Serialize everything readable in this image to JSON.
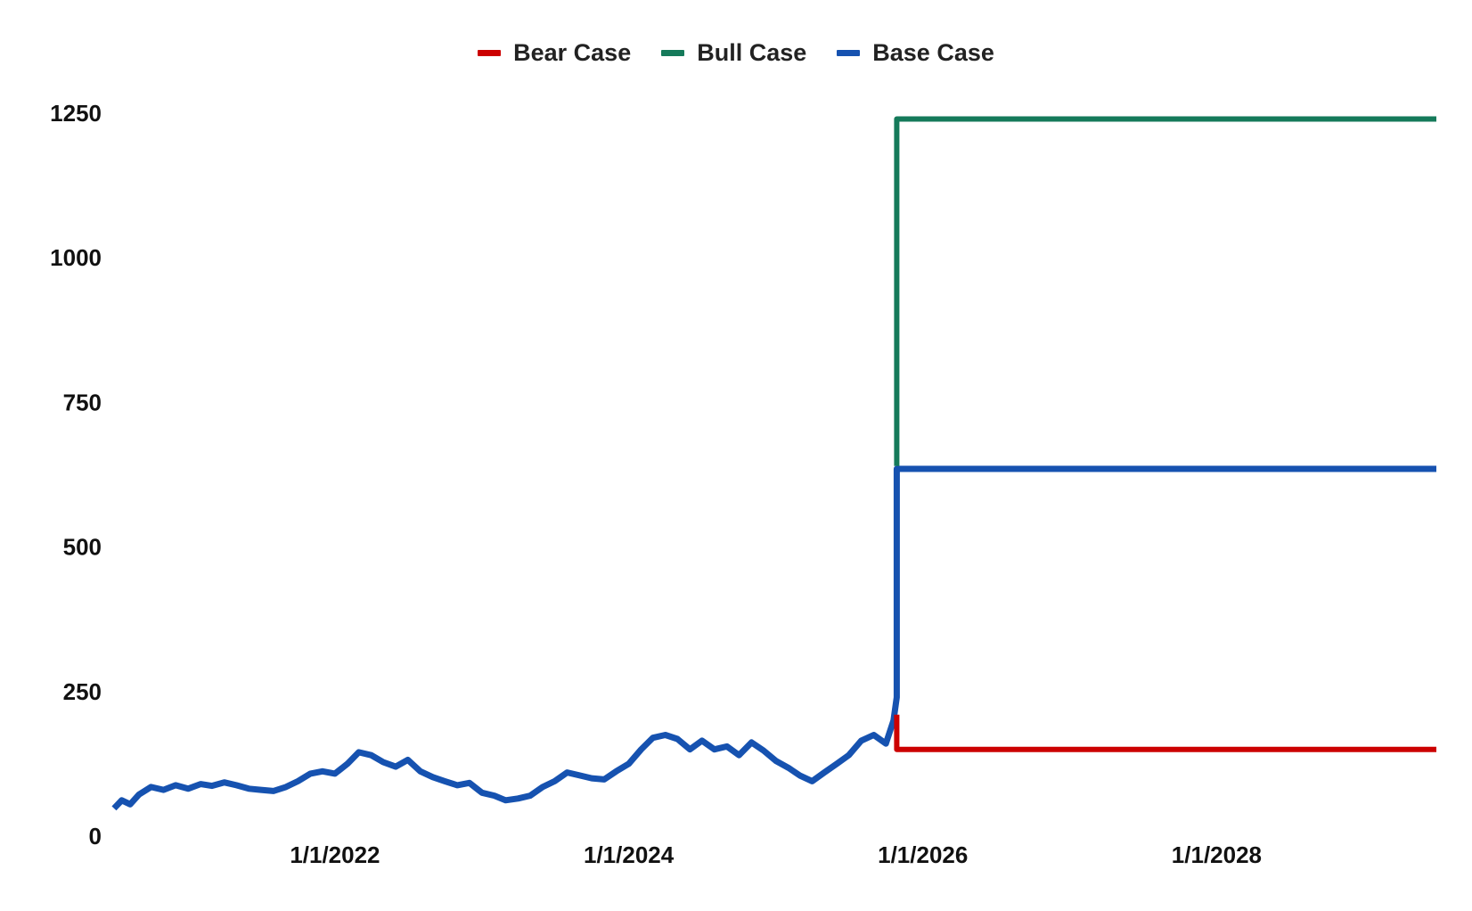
{
  "chart_data": {
    "type": "line",
    "title": "",
    "xlabel": "",
    "ylabel": "",
    "ylim": [
      0,
      1250
    ],
    "y_ticks": [
      "0",
      "250",
      "500",
      "750",
      "1000",
      "1250"
    ],
    "x_ticks": [
      "1/1/2022",
      "1/1/2024",
      "1/1/2026",
      "1/1/2028"
    ],
    "xlim": [
      "2020-07-01",
      "2029-06-30"
    ],
    "grid": false,
    "legend_position": "top-center",
    "series": [
      {
        "name": "Bear Case",
        "color": "#cc0000",
        "points": [
          [
            "2025-10-28",
            210
          ],
          [
            "2025-10-28",
            150
          ],
          [
            "2029-06-30",
            150
          ]
        ]
      },
      {
        "name": "Bull Case",
        "color": "#157a5a",
        "points": [
          [
            "2025-10-28",
            640
          ],
          [
            "2025-10-28",
            1240
          ],
          [
            "2029-06-30",
            1240
          ]
        ]
      },
      {
        "name": "Base Case",
        "color": "#1652b0",
        "points": [
          [
            "2020-07-01",
            48
          ],
          [
            "2020-07-20",
            62
          ],
          [
            "2020-08-10",
            55
          ],
          [
            "2020-09-01",
            72
          ],
          [
            "2020-10-01",
            85
          ],
          [
            "2020-11-01",
            80
          ],
          [
            "2020-12-01",
            88
          ],
          [
            "2021-01-01",
            82
          ],
          [
            "2021-02-01",
            90
          ],
          [
            "2021-03-01",
            87
          ],
          [
            "2021-04-01",
            93
          ],
          [
            "2021-05-01",
            88
          ],
          [
            "2021-06-01",
            82
          ],
          [
            "2021-07-01",
            80
          ],
          [
            "2021-08-01",
            78
          ],
          [
            "2021-09-01",
            85
          ],
          [
            "2021-10-01",
            95
          ],
          [
            "2021-11-01",
            108
          ],
          [
            "2021-12-01",
            112
          ],
          [
            "2022-01-01",
            108
          ],
          [
            "2022-02-01",
            125
          ],
          [
            "2022-03-01",
            145
          ],
          [
            "2022-04-01",
            140
          ],
          [
            "2022-05-01",
            128
          ],
          [
            "2022-06-01",
            120
          ],
          [
            "2022-07-01",
            132
          ],
          [
            "2022-08-01",
            112
          ],
          [
            "2022-09-01",
            102
          ],
          [
            "2022-10-01",
            95
          ],
          [
            "2022-11-01",
            88
          ],
          [
            "2022-12-01",
            92
          ],
          [
            "2023-01-01",
            75
          ],
          [
            "2023-02-01",
            70
          ],
          [
            "2023-03-01",
            62
          ],
          [
            "2023-04-01",
            65
          ],
          [
            "2023-05-01",
            70
          ],
          [
            "2023-06-01",
            85
          ],
          [
            "2023-07-01",
            95
          ],
          [
            "2023-08-01",
            110
          ],
          [
            "2023-09-01",
            105
          ],
          [
            "2023-10-01",
            100
          ],
          [
            "2023-11-01",
            98
          ],
          [
            "2023-12-01",
            112
          ],
          [
            "2024-01-01",
            125
          ],
          [
            "2024-02-01",
            150
          ],
          [
            "2024-03-01",
            170
          ],
          [
            "2024-04-01",
            175
          ],
          [
            "2024-05-01",
            168
          ],
          [
            "2024-06-01",
            150
          ],
          [
            "2024-07-01",
            165
          ],
          [
            "2024-08-01",
            150
          ],
          [
            "2024-09-01",
            155
          ],
          [
            "2024-10-01",
            140
          ],
          [
            "2024-11-01",
            162
          ],
          [
            "2024-12-01",
            148
          ],
          [
            "2025-01-01",
            130
          ],
          [
            "2025-02-01",
            118
          ],
          [
            "2025-03-01",
            105
          ],
          [
            "2025-04-01",
            95
          ],
          [
            "2025-05-01",
            110
          ],
          [
            "2025-06-01",
            125
          ],
          [
            "2025-07-01",
            140
          ],
          [
            "2025-08-01",
            165
          ],
          [
            "2025-09-01",
            175
          ],
          [
            "2025-10-01",
            160
          ],
          [
            "2025-10-20",
            200
          ],
          [
            "2025-10-28",
            240
          ],
          [
            "2025-10-28",
            635
          ],
          [
            "2029-06-30",
            635
          ]
        ]
      }
    ]
  }
}
